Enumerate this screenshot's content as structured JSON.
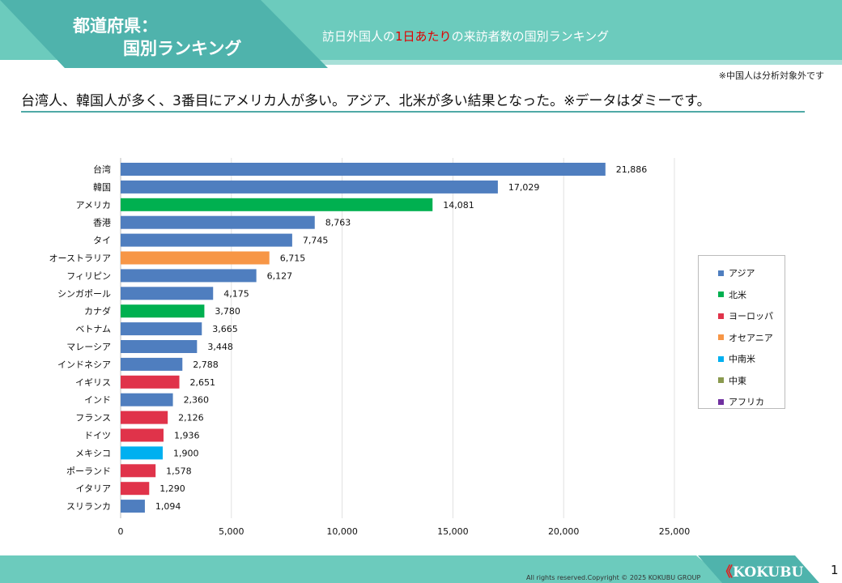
{
  "header": {
    "title_line1": "都道府県：",
    "title_line2": "国別ランキング",
    "subtitle_pre": "訪日外国人の",
    "subtitle_red": "1日あたり",
    "subtitle_post": "の来訪者数の国別ランキング"
  },
  "note": "※中国人は分析対象外です",
  "lead": "台湾人、韓国人が多く、3番目にアメリカ人が多い。アジア、北米が多い結果となった。※データはダミーです。",
  "footer": {
    "copyright": "All rights reserved.Copyright © 2025 KOKUBU GROUP",
    "logo": "KOKUBU",
    "page": "1"
  },
  "chart_data": {
    "type": "bar",
    "orientation": "horizontal",
    "categories": [
      "台湾",
      "韓国",
      "アメリカ",
      "香港",
      "タイ",
      "オーストラリア",
      "フィリピン",
      "シンガポール",
      "カナダ",
      "ベトナム",
      "マレーシア",
      "インドネシア",
      "イギリス",
      "インド",
      "フランス",
      "ドイツ",
      "メキシコ",
      "ポーランド",
      "イタリア",
      "スリランカ"
    ],
    "values": [
      21886,
      17029,
      14081,
      8763,
      7745,
      6715,
      6127,
      4175,
      3780,
      3665,
      3448,
      2788,
      2651,
      2360,
      2126,
      1936,
      1900,
      1578,
      1290,
      1094
    ],
    "value_labels": [
      "21,886",
      "17,029",
      "14,081",
      "8,763",
      "7,745",
      "6,715",
      "6,127",
      "4,175",
      "3,780",
      "3,665",
      "3,448",
      "2,788",
      "2,651",
      "2,360",
      "2,126",
      "1,936",
      "1,900",
      "1,578",
      "1,290",
      "1,094"
    ],
    "region": [
      "アジア",
      "アジア",
      "北米",
      "アジア",
      "アジア",
      "オセアニア",
      "アジア",
      "アジア",
      "北米",
      "アジア",
      "アジア",
      "アジア",
      "ヨーロッパ",
      "アジア",
      "ヨーロッパ",
      "ヨーロッパ",
      "中南米",
      "ヨーロッパ",
      "ヨーロッパ",
      "アジア"
    ],
    "xlim": [
      0,
      25000
    ],
    "xticks": [
      0,
      5000,
      10000,
      15000,
      20000,
      25000
    ],
    "xtick_labels": [
      "0",
      "5,000",
      "10,000",
      "15,000",
      "20,000",
      "25,000"
    ],
    "grid": true,
    "legend_position": "right",
    "legend": [
      {
        "name": "アジア",
        "color": "#4f7ebf"
      },
      {
        "name": "北米",
        "color": "#00b050"
      },
      {
        "name": "ヨーロッパ",
        "color": "#e0334a"
      },
      {
        "name": "オセアニア",
        "color": "#f79646"
      },
      {
        "name": "中南米",
        "color": "#00b0f0"
      },
      {
        "name": "中東",
        "color": "#8a9a4f"
      },
      {
        "name": "アフリカ",
        "color": "#7030a0"
      }
    ]
  }
}
